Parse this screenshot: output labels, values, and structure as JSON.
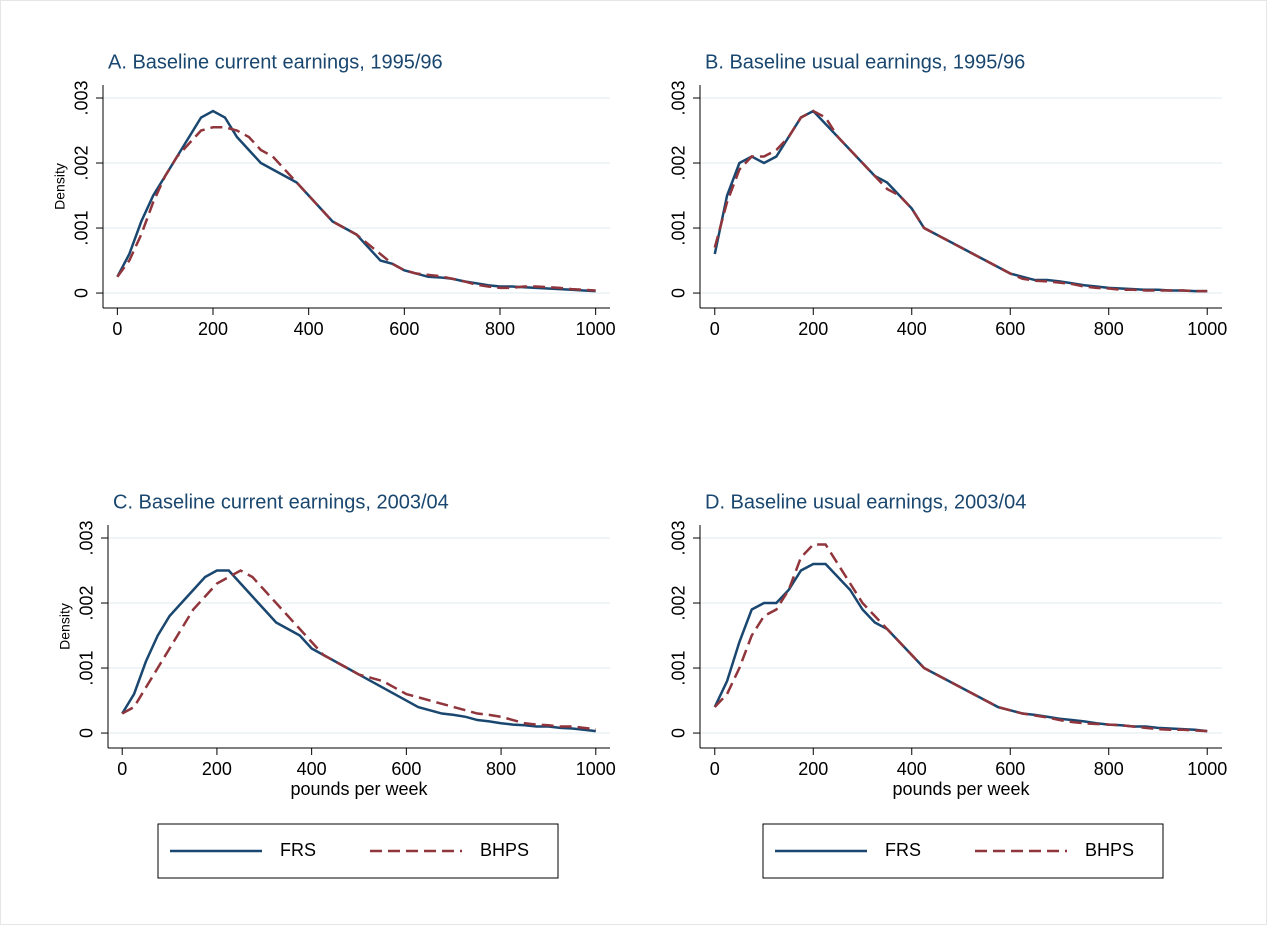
{
  "chart_data": [
    {
      "type": "line",
      "title": "A. Baseline current earnings, 1995/96",
      "ylabel": "Density",
      "x": [
        0,
        25,
        50,
        75,
        100,
        125,
        150,
        175,
        200,
        225,
        250,
        275,
        300,
        325,
        350,
        375,
        400,
        425,
        450,
        475,
        500,
        525,
        550,
        575,
        600,
        625,
        650,
        675,
        700,
        725,
        750,
        775,
        800,
        825,
        850,
        875,
        900,
        925,
        950,
        975,
        1000
      ],
      "series": [
        {
          "name": "FRS",
          "color": "#1a476f",
          "dash": false,
          "values": [
            0.00025,
            0.0006,
            0.0011,
            0.0015,
            0.0018,
            0.0021,
            0.0024,
            0.0027,
            0.0028,
            0.0027,
            0.0024,
            0.0022,
            0.002,
            0.0019,
            0.0018,
            0.0017,
            0.0015,
            0.0013,
            0.0011,
            0.001,
            0.0009,
            0.0007,
            0.0005,
            0.00045,
            0.00035,
            0.0003,
            0.00025,
            0.00024,
            0.00022,
            0.00018,
            0.00015,
            0.00012,
            0.0001,
            0.0001,
            9e-05,
            8e-05,
            7e-05,
            6e-05,
            5e-05,
            4e-05,
            3e-05
          ]
        },
        {
          "name": "BHPS",
          "color": "#90353b",
          "dash": true,
          "values": [
            0.00025,
            0.0005,
            0.0009,
            0.0014,
            0.0018,
            0.0021,
            0.0023,
            0.0025,
            0.00255,
            0.00255,
            0.0025,
            0.0024,
            0.0022,
            0.0021,
            0.0019,
            0.0017,
            0.0015,
            0.0013,
            0.0011,
            0.001,
            0.0009,
            0.00075,
            0.0006,
            0.00045,
            0.00035,
            0.0003,
            0.00028,
            0.00026,
            0.00022,
            0.00018,
            0.00013,
            0.0001,
            8e-05,
            8e-05,
            0.0001,
            0.0001,
            9e-05,
            8e-05,
            6e-05,
            5e-05,
            4e-05
          ]
        }
      ],
      "xlim": [
        -30,
        1030
      ],
      "xticks": [
        0,
        200,
        400,
        600,
        800,
        1000
      ],
      "ylim": [
        -0.00023,
        0.0032
      ],
      "yticks": [
        0,
        {
          "value": 0.001,
          "label": ".001"
        },
        {
          "value": 0.002,
          "label": ".002"
        },
        {
          "value": 0.003,
          "label": ".003"
        }
      ],
      "grid": true
    },
    {
      "type": "line",
      "title": "B. Baseline usual earnings, 1995/96",
      "x": [
        0,
        25,
        50,
        75,
        100,
        125,
        150,
        175,
        200,
        225,
        250,
        275,
        300,
        325,
        350,
        375,
        400,
        425,
        450,
        475,
        500,
        525,
        550,
        575,
        600,
        625,
        650,
        675,
        700,
        725,
        750,
        775,
        800,
        825,
        850,
        875,
        900,
        925,
        950,
        975,
        1000
      ],
      "series": [
        {
          "name": "FRS",
          "color": "#1a476f",
          "dash": false,
          "values": [
            0.0006,
            0.0015,
            0.002,
            0.0021,
            0.002,
            0.0021,
            0.0024,
            0.0027,
            0.0028,
            0.0026,
            0.0024,
            0.0022,
            0.002,
            0.0018,
            0.0017,
            0.0015,
            0.0013,
            0.001,
            0.0009,
            0.0008,
            0.0007,
            0.0006,
            0.0005,
            0.0004,
            0.0003,
            0.00025,
            0.0002,
            0.0002,
            0.00018,
            0.00015,
            0.00012,
            0.0001,
            8e-05,
            7e-05,
            6e-05,
            5e-05,
            5e-05,
            4e-05,
            4e-05,
            3e-05,
            3e-05
          ]
        },
        {
          "name": "BHPS",
          "color": "#90353b",
          "dash": true,
          "values": [
            0.0007,
            0.0014,
            0.0019,
            0.0021,
            0.0021,
            0.0022,
            0.0024,
            0.0027,
            0.0028,
            0.0027,
            0.0024,
            0.0022,
            0.002,
            0.0018,
            0.0016,
            0.0015,
            0.0013,
            0.001,
            0.0009,
            0.0008,
            0.0007,
            0.0006,
            0.0005,
            0.0004,
            0.0003,
            0.00022,
            0.00019,
            0.00018,
            0.00016,
            0.00014,
            0.0001,
            8e-05,
            7e-05,
            5e-05,
            5e-05,
            4e-05,
            4e-05,
            4e-05,
            4e-05,
            3e-05,
            3e-05
          ]
        }
      ],
      "xlim": [
        -30,
        1030
      ],
      "xticks": [
        0,
        200,
        400,
        600,
        800,
        1000
      ],
      "ylim": [
        -0.00023,
        0.0032
      ],
      "yticks": [
        0,
        {
          "value": 0.001,
          "label": ".001"
        },
        {
          "value": 0.002,
          "label": ".002"
        },
        {
          "value": 0.003,
          "label": ".003"
        }
      ],
      "grid": true
    },
    {
      "type": "line",
      "title": "C. Baseline current earnings, 2003/04",
      "ylabel": "Density",
      "xlabel": "pounds per week",
      "legend": "bottom",
      "x": [
        0,
        25,
        50,
        75,
        100,
        125,
        150,
        175,
        200,
        225,
        250,
        275,
        300,
        325,
        350,
        375,
        400,
        425,
        450,
        475,
        500,
        525,
        550,
        575,
        600,
        625,
        650,
        675,
        700,
        725,
        750,
        775,
        800,
        825,
        850,
        875,
        900,
        925,
        950,
        975,
        1000
      ],
      "series": [
        {
          "name": "FRS",
          "color": "#1a476f",
          "dash": false,
          "values": [
            0.0003,
            0.0006,
            0.0011,
            0.0015,
            0.0018,
            0.002,
            0.0022,
            0.0024,
            0.0025,
            0.0025,
            0.0023,
            0.0021,
            0.0019,
            0.0017,
            0.0016,
            0.0015,
            0.0013,
            0.0012,
            0.0011,
            0.001,
            0.0009,
            0.0008,
            0.0007,
            0.0006,
            0.0005,
            0.0004,
            0.00035,
            0.0003,
            0.00028,
            0.00025,
            0.0002,
            0.00018,
            0.00015,
            0.00013,
            0.00012,
            0.0001,
            0.0001,
            8e-05,
            7e-05,
            5e-05,
            3e-05
          ]
        },
        {
          "name": "BHPS",
          "color": "#90353b",
          "dash": true,
          "values": [
            0.0003,
            0.0004,
            0.0007,
            0.001,
            0.0013,
            0.0016,
            0.0019,
            0.0021,
            0.0023,
            0.0024,
            0.0025,
            0.0024,
            0.0022,
            0.002,
            0.0018,
            0.0016,
            0.0014,
            0.0012,
            0.0011,
            0.001,
            0.0009,
            0.00085,
            0.0008,
            0.0007,
            0.0006,
            0.00055,
            0.0005,
            0.00045,
            0.0004,
            0.00035,
            0.0003,
            0.00028,
            0.00025,
            0.0002,
            0.00015,
            0.00013,
            0.00012,
            0.0001,
            0.0001,
            8e-05,
            6e-05
          ]
        }
      ],
      "xlim": [
        -30,
        1030
      ],
      "xticks": [
        0,
        200,
        400,
        600,
        800,
        1000
      ],
      "ylim": [
        -0.00023,
        0.0032
      ],
      "yticks": [
        0,
        {
          "value": 0.001,
          "label": ".001"
        },
        {
          "value": 0.002,
          "label": ".002"
        },
        {
          "value": 0.003,
          "label": ".003"
        }
      ],
      "grid": true
    },
    {
      "type": "line",
      "title": "D. Baseline usual earnings, 2003/04",
      "xlabel": "pounds per week",
      "legend": "bottom",
      "x": [
        0,
        25,
        50,
        75,
        100,
        125,
        150,
        175,
        200,
        225,
        250,
        275,
        300,
        325,
        350,
        375,
        400,
        425,
        450,
        475,
        500,
        525,
        550,
        575,
        600,
        625,
        650,
        675,
        700,
        725,
        750,
        775,
        800,
        825,
        850,
        875,
        900,
        925,
        950,
        975,
        1000
      ],
      "series": [
        {
          "name": "FRS",
          "color": "#1a476f",
          "dash": false,
          "values": [
            0.0004,
            0.0008,
            0.0014,
            0.0019,
            0.002,
            0.002,
            0.0022,
            0.0025,
            0.0026,
            0.0026,
            0.0024,
            0.0022,
            0.0019,
            0.0017,
            0.0016,
            0.0014,
            0.0012,
            0.001,
            0.0009,
            0.0008,
            0.0007,
            0.0006,
            0.0005,
            0.0004,
            0.00035,
            0.0003,
            0.00028,
            0.00025,
            0.00022,
            0.0002,
            0.00018,
            0.00015,
            0.00013,
            0.00012,
            0.0001,
            0.0001,
            8e-05,
            7e-05,
            6e-05,
            5e-05,
            3e-05
          ]
        },
        {
          "name": "BHPS",
          "color": "#90353b",
          "dash": true,
          "values": [
            0.0004,
            0.0006,
            0.001,
            0.0015,
            0.0018,
            0.0019,
            0.0022,
            0.0027,
            0.0029,
            0.0029,
            0.0026,
            0.0023,
            0.002,
            0.0018,
            0.0016,
            0.0014,
            0.0012,
            0.001,
            0.0009,
            0.0008,
            0.0007,
            0.0006,
            0.0005,
            0.0004,
            0.00035,
            0.0003,
            0.00027,
            0.00024,
            0.0002,
            0.00017,
            0.00015,
            0.00014,
            0.00013,
            0.00012,
            0.0001,
            8e-05,
            6e-05,
            5e-05,
            5e-05,
            4e-05,
            3e-05
          ]
        }
      ],
      "xlim": [
        -30,
        1030
      ],
      "xticks": [
        0,
        200,
        400,
        600,
        800,
        1000
      ],
      "ylim": [
        -0.00023,
        0.0032
      ],
      "yticks": [
        0,
        {
          "value": 0.001,
          "label": ".001"
        },
        {
          "value": 0.002,
          "label": ".002"
        },
        {
          "value": 0.003,
          "label": ".003"
        }
      ],
      "grid": true
    }
  ]
}
